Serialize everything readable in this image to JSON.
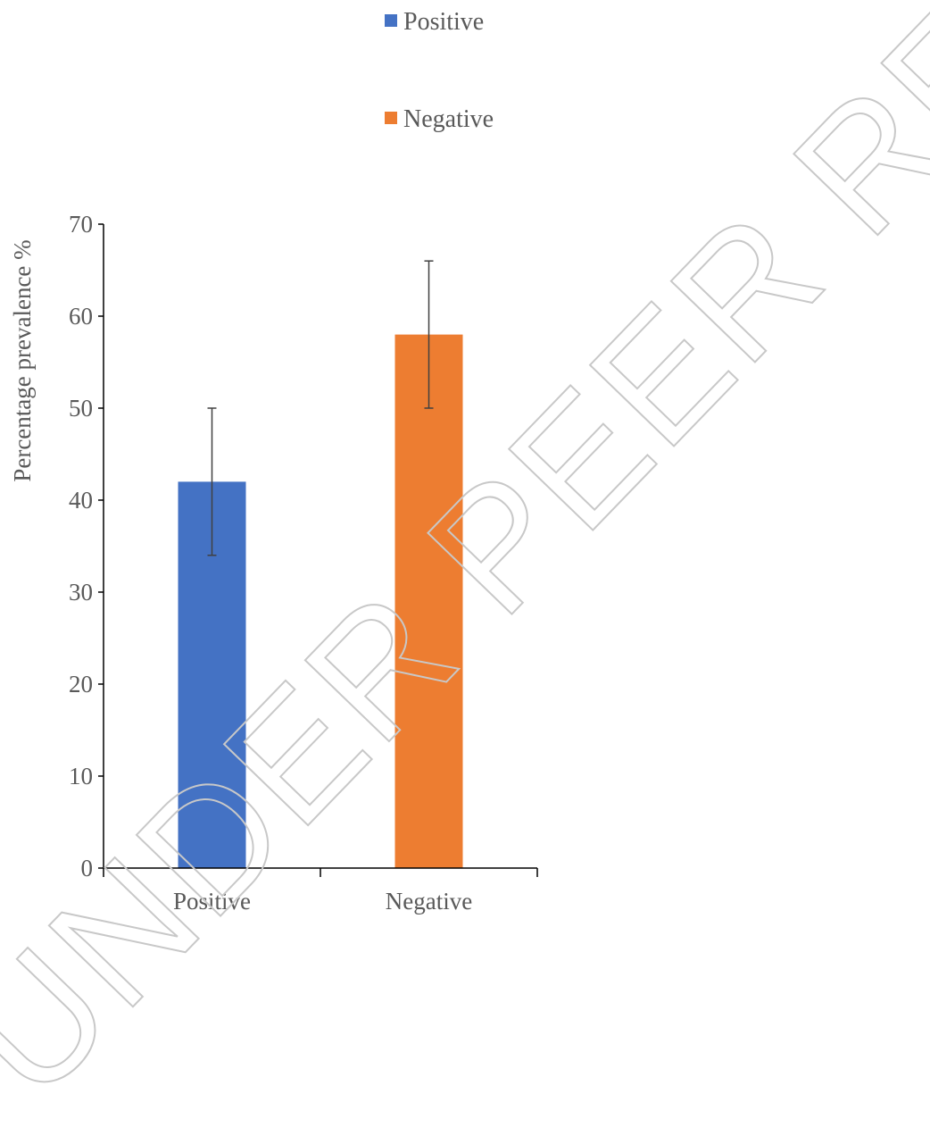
{
  "chart_data": {
    "type": "bar",
    "categories": [
      "Positive",
      "Negative"
    ],
    "values": [
      42,
      58
    ],
    "error": [
      8,
      8
    ],
    "colors": [
      "#4472c4",
      "#ed7d31"
    ],
    "title": "",
    "xlabel": "",
    "ylabel": "Percentage prevalence %",
    "ylim": [
      0,
      70
    ],
    "yticks": [
      0,
      10,
      20,
      30,
      40,
      50,
      60,
      70
    ],
    "grid": false,
    "legend": {
      "placement": "top",
      "entries": [
        {
          "label": "Positive",
          "color": "#4472c4"
        },
        {
          "label": "Negative",
          "color": "#ed7d31"
        }
      ]
    }
  },
  "watermark": {
    "text": "UNDER PEER REVIEW",
    "color": "#c8c8c8"
  }
}
